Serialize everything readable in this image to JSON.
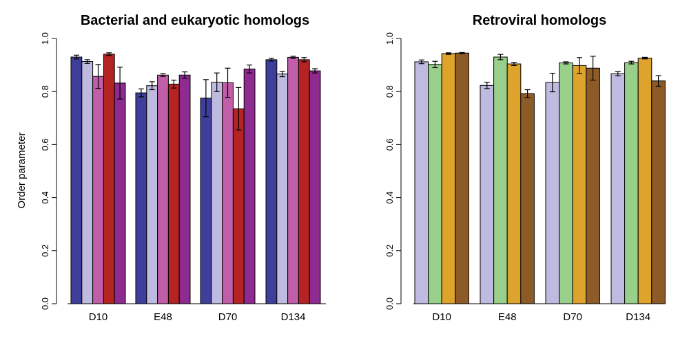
{
  "ylabel": "Order parameter",
  "chart_data": [
    {
      "type": "bar",
      "title": "Bacterial and eukaryotic homologs",
      "ylabel": "Order parameter",
      "ylim": [
        0,
        1.0
      ],
      "yticks": [
        "0.0",
        "0.2",
        "0.4",
        "0.6",
        "0.8",
        "1.0"
      ],
      "categories": [
        "D10",
        "E48",
        "D70",
        "D134"
      ],
      "grid": false,
      "series": [
        {
          "color": "#3f3f9b",
          "values": [
            0.93,
            0.795,
            0.775,
            0.92
          ],
          "errors": [
            0.007,
            0.015,
            0.07,
            0.005
          ]
        },
        {
          "color": "#bfbbe0",
          "values": [
            0.913,
            0.822,
            0.835,
            0.866
          ],
          "errors": [
            0.007,
            0.015,
            0.035,
            0.01
          ]
        },
        {
          "color": "#c05ea8",
          "values": [
            0.857,
            0.862,
            0.833,
            0.929
          ],
          "errors": [
            0.045,
            0.005,
            0.055,
            0.004
          ]
        },
        {
          "color": "#b52323",
          "values": [
            0.941,
            0.828,
            0.735,
            0.92
          ],
          "errors": [
            0.005,
            0.015,
            0.08,
            0.008
          ]
        },
        {
          "color": "#8e2a90",
          "values": [
            0.832,
            0.862,
            0.885,
            0.878
          ],
          "errors": [
            0.06,
            0.012,
            0.015,
            0.008
          ]
        }
      ]
    },
    {
      "type": "bar",
      "title": "Retroviral homologs",
      "ylim": [
        0,
        1.0
      ],
      "yticks": [
        "0.0",
        "0.2",
        "0.4",
        "0.6",
        "0.8",
        "1.0"
      ],
      "categories": [
        "D10",
        "E48",
        "D70",
        "D134"
      ],
      "grid": false,
      "series": [
        {
          "color": "#bfbbe0",
          "values": [
            0.912,
            0.823,
            0.834,
            0.867
          ],
          "errors": [
            0.007,
            0.012,
            0.035,
            0.008
          ]
        },
        {
          "color": "#98d08b",
          "values": [
            0.902,
            0.93,
            0.908,
            0.909
          ],
          "errors": [
            0.012,
            0.01,
            0.004,
            0.005
          ]
        },
        {
          "color": "#dea32c",
          "values": [
            0.943,
            0.904,
            0.898,
            0.926
          ],
          "errors": [
            0.003,
            0.006,
            0.03,
            0.003
          ]
        },
        {
          "color": "#8d5b28",
          "values": [
            0.945,
            0.792,
            0.888,
            0.84
          ],
          "errors": [
            0.002,
            0.015,
            0.045,
            0.02
          ]
        }
      ]
    }
  ]
}
